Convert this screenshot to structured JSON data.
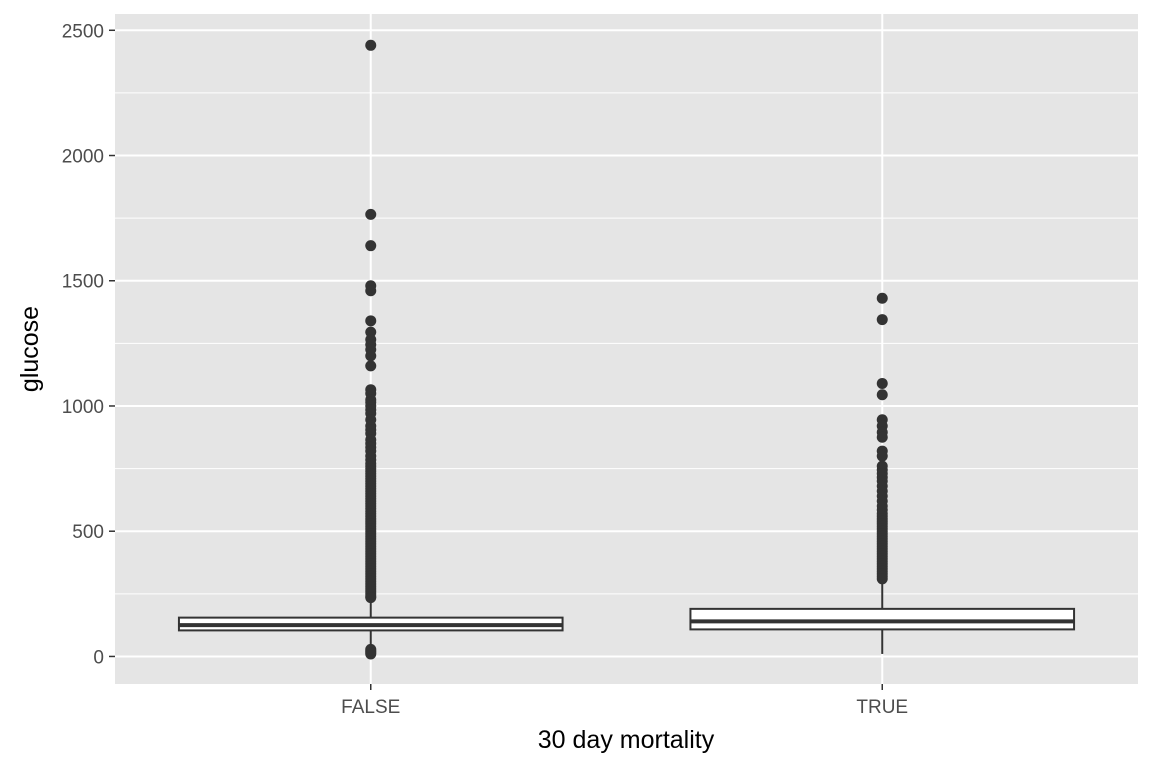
{
  "chart_data": {
    "type": "boxplot",
    "title": "",
    "xlabel": "30 day mortality",
    "ylabel": "glucose",
    "categories": [
      "FALSE",
      "TRUE"
    ],
    "ylim": [
      -110,
      2565
    ],
    "yticks": [
      0,
      500,
      1000,
      1500,
      2000,
      2500
    ],
    "grid": true,
    "legend": "none",
    "colors": {
      "panel": "#e5e5e5",
      "grid": "#ffffff",
      "box_fill": "#ffffff",
      "stroke": "#333333",
      "outlier": "#333333",
      "tick_text": "#4d4d4d"
    },
    "boxes": [
      {
        "category": "FALSE",
        "whisker_low": 12,
        "q1": 104,
        "median": 125,
        "q3": 155,
        "whisker_high": 230,
        "outliers": [
          2440,
          1765,
          1640,
          1480,
          1460,
          1340,
          1295,
          1265,
          1245,
          1225,
          1200,
          1160,
          1065,
          1050,
          1025,
          1015,
          1000,
          985,
          970,
          945,
          920,
          905,
          890,
          865,
          850,
          835,
          820,
          800,
          785,
          770,
          760,
          750,
          740,
          730,
          720,
          710,
          700,
          690,
          680,
          670,
          660,
          650,
          640,
          630,
          620,
          610,
          600,
          590,
          580,
          570,
          560,
          550,
          540,
          530,
          520,
          510,
          500,
          490,
          480,
          470,
          460,
          450,
          440,
          430,
          420,
          410,
          400,
          390,
          380,
          370,
          360,
          350,
          340,
          330,
          320,
          310,
          300,
          290,
          280,
          270,
          260,
          250,
          240,
          235,
          28,
          22,
          16,
          10
        ]
      },
      {
        "category": "TRUE",
        "whisker_low": 10,
        "q1": 108,
        "median": 140,
        "q3": 190,
        "whisker_high": 305,
        "outliers": [
          1430,
          1345,
          1090,
          1045,
          945,
          920,
          895,
          875,
          820,
          800,
          760,
          745,
          730,
          715,
          700,
          680,
          660,
          640,
          620,
          600,
          585,
          570,
          560,
          550,
          540,
          530,
          520,
          510,
          500,
          490,
          480,
          470,
          460,
          450,
          440,
          430,
          420,
          410,
          400,
          390,
          380,
          370,
          360,
          350,
          340,
          330,
          320,
          310
        ]
      }
    ]
  }
}
